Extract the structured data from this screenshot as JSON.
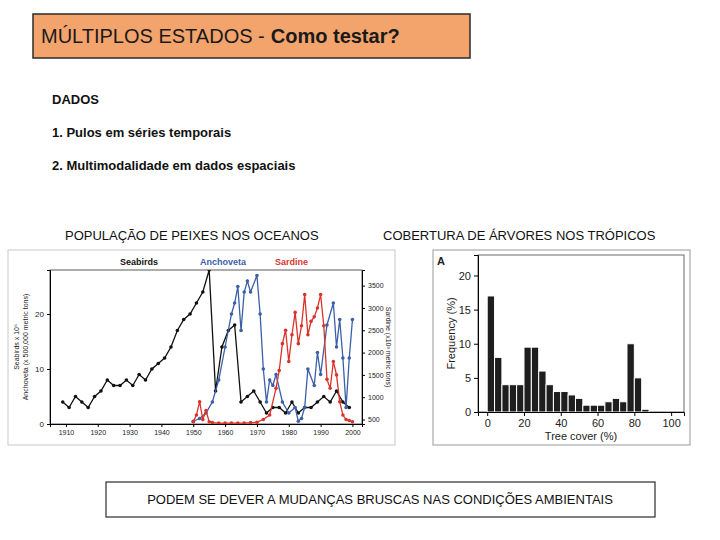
{
  "header": {
    "title": "MÚLTIPLOS ESTADOS -",
    "emphasis": "Como testar?"
  },
  "section": "DADOS",
  "items": [
    "1. Pulos em séries temporais",
    "2. Multimodalidade em dados espaciais"
  ],
  "footer": "PODEM SE DEVER A MUDANÇAS BRUSCAS NAS CONDIÇÕES AMBIENTAIS",
  "chart_data": [
    {
      "type": "line",
      "title": "POPULAÇÃO DE PEIXES NOS OCEANOS",
      "ylabel": [
        "Seabirds x 10⁶",
        "Anchoveta (x 500,000 metric tons)"
      ],
      "y2label": "Sardine (x10³ metric tons)",
      "xlim": [
        1905,
        2003
      ],
      "xticks": [
        1910,
        1920,
        1930,
        1940,
        1950,
        1960,
        1970,
        1980,
        1990,
        2000
      ],
      "ylim": [
        0,
        28
      ],
      "yticks": [
        0,
        10,
        20
      ],
      "y2lim": [
        400,
        3850
      ],
      "y2ticks": [
        500,
        1000,
        1500,
        2000,
        2500,
        3000,
        3500
      ],
      "series": [
        {
          "name": "Seabirds",
          "color": "#111111",
          "marker": "circle",
          "x": [
            1909,
            1911,
            1913,
            1915,
            1917,
            1919,
            1921,
            1923,
            1925,
            1927,
            1929,
            1931,
            1933,
            1935,
            1937,
            1939,
            1941,
            1943,
            1945,
            1947,
            1949,
            1951,
            1953,
            1955,
            1957,
            1959,
            1961,
            1963,
            1965,
            1967,
            1969,
            1971,
            1973,
            1975,
            1977,
            1979,
            1981,
            1983,
            1985,
            1987,
            1989,
            1991,
            1993,
            1995,
            1997,
            1999
          ],
          "values": [
            4,
            3,
            5,
            4,
            3,
            5,
            6,
            8,
            7,
            7,
            8,
            7,
            9,
            8,
            10,
            11,
            12,
            14,
            17,
            19,
            20,
            22,
            24,
            28,
            6,
            14,
            17,
            18,
            4,
            5,
            6,
            4,
            2,
            3,
            3,
            2,
            4,
            2,
            3,
            3,
            4,
            5,
            4,
            6,
            4,
            3
          ]
        },
        {
          "name": "Anchoveta",
          "color": "#3b5fa8",
          "marker": "circle",
          "x": [
            1950,
            1952,
            1954,
            1956,
            1958,
            1960,
            1962,
            1963,
            1964,
            1965,
            1966,
            1967,
            1968,
            1970,
            1971,
            1972,
            1973,
            1974,
            1975,
            1976,
            1978,
            1980,
            1982,
            1983,
            1984,
            1985,
            1986,
            1988,
            1989,
            1990,
            1992,
            1994,
            1995,
            1996,
            1997,
            1998,
            1999,
            2000
          ],
          "values": [
            0.5,
            1,
            2,
            4,
            8,
            14,
            20,
            22,
            25,
            17,
            24,
            26,
            24,
            27,
            20,
            10,
            4,
            8,
            7,
            9,
            4,
            2,
            3,
            0.5,
            1,
            3,
            10,
            7,
            13,
            9,
            18,
            22,
            14,
            19,
            12,
            3,
            12,
            19
          ]
        },
        {
          "name": "Sardine",
          "color": "#d9342b",
          "marker": "circle",
          "axis": "y2",
          "x": [
            1950,
            1951,
            1952,
            1953,
            1954,
            1955,
            1956,
            1958,
            1960,
            1962,
            1964,
            1966,
            1968,
            1970,
            1972,
            1974,
            1976,
            1977,
            1978,
            1979,
            1980,
            1981,
            1982,
            1983,
            1984,
            1985,
            1986,
            1987,
            1988,
            1989,
            1990,
            1991,
            1992,
            1993,
            1994,
            1995,
            1996,
            1997,
            1998,
            1999,
            2000
          ],
          "values": [
            450,
            600,
            900,
            500,
            700,
            450,
            430,
            420,
            420,
            420,
            420,
            420,
            430,
            440,
            500,
            600,
            1200,
            1600,
            2200,
            2500,
            1800,
            2400,
            2900,
            2200,
            2600,
            3300,
            2400,
            2700,
            2800,
            3000,
            3300,
            2600,
            1400,
            1200,
            1800,
            1500,
            900,
            600,
            500,
            480,
            450
          ]
        }
      ]
    },
    {
      "type": "histogram",
      "title": "COBERTURA DE ÁRVORES NOS TRÓPICOS",
      "annotation": "A",
      "xlabel": "Tree cover (%)",
      "ylabel": "Frequency (%)",
      "bins": [
        0,
        4,
        8,
        12,
        16,
        20,
        24,
        28,
        32,
        36,
        40,
        44,
        48,
        52,
        56,
        60,
        64,
        68,
        72,
        76,
        80,
        84,
        88
      ],
      "values": [
        17,
        8,
        4,
        4,
        4,
        9.5,
        9.5,
        6,
        4,
        3,
        3,
        2.5,
        2,
        1,
        1,
        1,
        1.5,
        2,
        1.5,
        10,
        5,
        0.4
      ],
      "color": "#1e1e1e",
      "xlim": [
        -5,
        107
      ],
      "xticks": [
        0,
        20,
        40,
        60,
        80,
        100
      ],
      "ylim": [
        0,
        23
      ],
      "yticks": [
        0,
        5,
        10,
        15,
        20
      ]
    }
  ]
}
